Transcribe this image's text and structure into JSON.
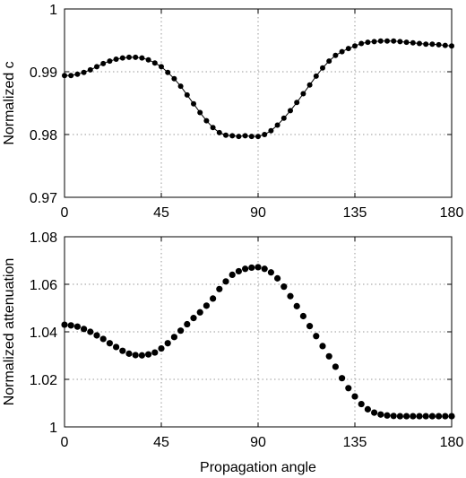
{
  "chart_data": [
    {
      "type": "line",
      "ylabel": "Normalized c",
      "xlabel": "",
      "xlim": [
        0,
        180
      ],
      "ylim": [
        0.97,
        1.0
      ],
      "x_ticks": [
        "0",
        "45",
        "90",
        "135",
        "180"
      ],
      "y_ticks": [
        "0.97",
        "0.98",
        "0.99",
        "1"
      ],
      "grid": true,
      "series": [
        {
          "marker": "dot",
          "line": true,
          "x": [
            0,
            3,
            6,
            9,
            12,
            15,
            18,
            21,
            24,
            27,
            30,
            33,
            36,
            39,
            42,
            45,
            48,
            51,
            54,
            57,
            60,
            63,
            66,
            69,
            72,
            75,
            78,
            81,
            84,
            87,
            90,
            93,
            96,
            99,
            102,
            105,
            108,
            111,
            114,
            117,
            120,
            123,
            126,
            129,
            132,
            135,
            138,
            141,
            144,
            147,
            150,
            153,
            156,
            159,
            162,
            165,
            168,
            171,
            174,
            177,
            180
          ],
          "values": [
            0.9894,
            0.9894,
            0.9896,
            0.9899,
            0.9903,
            0.9908,
            0.9913,
            0.9917,
            0.992,
            0.9922,
            0.9923,
            0.9923,
            0.9922,
            0.9919,
            0.9914,
            0.9908,
            0.9899,
            0.9889,
            0.9877,
            0.9863,
            0.9849,
            0.9835,
            0.9822,
            0.9811,
            0.9803,
            0.9799,
            0.9798,
            0.9797,
            0.9798,
            0.9797,
            0.9797,
            0.98,
            0.9806,
            0.9815,
            0.9826,
            0.9838,
            0.9851,
            0.9865,
            0.9879,
            0.9893,
            0.9906,
            0.9917,
            0.9926,
            0.9932,
            0.9937,
            0.9941,
            0.9945,
            0.9947,
            0.9948,
            0.9949,
            0.9949,
            0.9949,
            0.9948,
            0.9947,
            0.9946,
            0.9945,
            0.9944,
            0.9944,
            0.9943,
            0.9942,
            0.9941
          ]
        }
      ]
    },
    {
      "type": "scatter",
      "ylabel": "Normalized attenuation",
      "xlabel": "Propagation angle",
      "xlim": [
        0,
        180
      ],
      "ylim": [
        1.0,
        1.08
      ],
      "x_ticks": [
        "0",
        "45",
        "90",
        "135",
        "180"
      ],
      "y_ticks": [
        "1",
        "1.02",
        "1.04",
        "1.06",
        "1.08"
      ],
      "grid": true,
      "series": [
        {
          "marker": "dot",
          "line": false,
          "x": [
            0,
            3,
            6,
            9,
            12,
            15,
            18,
            21,
            24,
            27,
            30,
            33,
            36,
            39,
            42,
            45,
            48,
            51,
            54,
            57,
            60,
            63,
            66,
            69,
            72,
            75,
            78,
            81,
            84,
            87,
            90,
            93,
            96,
            99,
            102,
            105,
            108,
            111,
            114,
            117,
            120,
            123,
            126,
            129,
            132,
            135,
            138,
            141,
            144,
            147,
            150,
            153,
            156,
            159,
            162,
            165,
            168,
            171,
            174,
            177,
            180
          ],
          "values": [
            1.043,
            1.0427,
            1.0422,
            1.0412,
            1.04,
            1.0385,
            1.037,
            1.0352,
            1.0336,
            1.032,
            1.0308,
            1.0302,
            1.0301,
            1.0305,
            1.0313,
            1.033,
            1.0352,
            1.0378,
            1.0405,
            1.0432,
            1.0458,
            1.0482,
            1.051,
            1.054,
            1.058,
            1.0612,
            1.064,
            1.0655,
            1.0665,
            1.067,
            1.0672,
            1.0665,
            1.065,
            1.0625,
            1.059,
            1.055,
            1.0508,
            1.0466,
            1.0424,
            1.0382,
            1.034,
            1.0297,
            1.0253,
            1.0205,
            1.0163,
            1.0128,
            1.0096,
            1.0074,
            1.006,
            1.0052,
            1.0048,
            1.0046,
            1.0045,
            1.0045,
            1.0045,
            1.0045,
            1.0045,
            1.0045,
            1.0045,
            1.0045,
            1.0045
          ]
        }
      ]
    }
  ]
}
